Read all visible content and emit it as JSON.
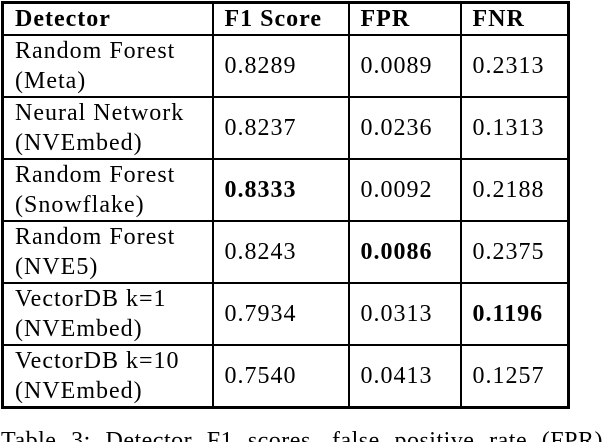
{
  "colors": {
    "background": "#ffffff",
    "text": "#000000",
    "border": "#000000"
  },
  "table": {
    "headers": {
      "detector": "Detector",
      "f1": "F1 Score",
      "fpr": "FPR",
      "fnr": "FNR"
    },
    "rows": [
      {
        "name": [
          "Random Forest",
          "(Meta)"
        ],
        "f1": "0.8289",
        "fpr": "0.0089",
        "fnr": "0.2313",
        "bold": ""
      },
      {
        "name": [
          "Neural Network",
          "(NVEmbed)"
        ],
        "f1": "0.8237",
        "fpr": "0.0236",
        "fnr": "0.1313",
        "bold": ""
      },
      {
        "name": [
          "Random Forest",
          "(Snowflake)"
        ],
        "f1": "0.8333",
        "fpr": "0.0092",
        "fnr": "0.2188",
        "bold": "f1"
      },
      {
        "name": [
          "Random Forest",
          "(NVE5)"
        ],
        "f1": "0.8243",
        "fpr": "0.0086",
        "fnr": "0.2375",
        "bold": "fpr"
      },
      {
        "name": [
          "VectorDB k=1",
          "(NVEmbed)"
        ],
        "f1": "0.7934",
        "fpr": "0.0313",
        "fnr": "0.1196",
        "bold": "fnr"
      },
      {
        "name": [
          "VectorDB k=10",
          "(NVEmbed)"
        ],
        "f1": "0.7540",
        "fpr": "0.0413",
        "fnr": "0.1257",
        "bold": ""
      }
    ]
  },
  "caption": "Table 3: Detector F1 scores, false positive rate (FPR)"
}
